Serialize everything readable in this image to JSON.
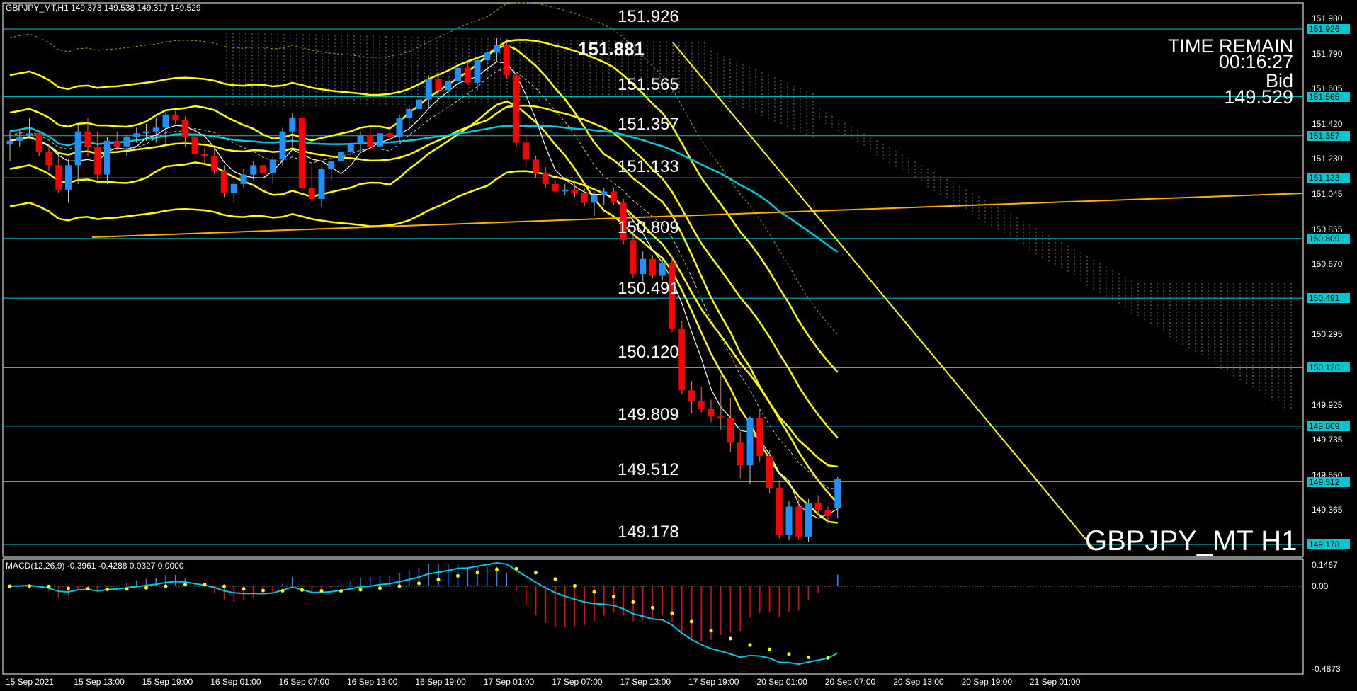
{
  "window": {
    "symbol_info": "GBPJPY_MT,H1  149.373 149.538 149.317 149.529",
    "watermark": "GBPJPY_MT H1"
  },
  "info_panel": {
    "time_remain_label": "TIME REMAIN",
    "time_remain_value": "00:16:27",
    "bid_label": "Bid",
    "bid_value": "149.529"
  },
  "level_labels": [
    {
      "text": "151.926",
      "bold": false
    },
    {
      "text": "151.881",
      "bold": true
    },
    {
      "text": "151.565",
      "bold": false
    },
    {
      "text": "151.357",
      "bold": false
    },
    {
      "text": "151.133",
      "bold": false
    },
    {
      "text": "150.809",
      "bold": false
    },
    {
      "text": "150.491",
      "bold": false
    },
    {
      "text": "150.120",
      "bold": false
    },
    {
      "text": "149.809",
      "bold": false
    },
    {
      "text": "149.512",
      "bold": false
    },
    {
      "text": "149.178",
      "bold": false
    }
  ],
  "price_axis": [
    "151.980",
    "151.790",
    "151.605",
    "151.420",
    "151.230",
    "151.045",
    "150.855",
    "150.670",
    "150.480",
    "150.295",
    "150.110",
    "149.925",
    "149.735",
    "149.550",
    "149.365"
  ],
  "price_tags": [
    "151.926",
    "151.565",
    "151.357",
    "151.133",
    "150.809",
    "150.491",
    "150.120",
    "149.809",
    "149.512",
    "149.178"
  ],
  "macd": {
    "label": "MACD(12,26,9) -0.3961 -0.4288 0.0327 0.0000",
    "axis": [
      "0.1467",
      "0.00",
      "-0.4873"
    ]
  },
  "time_axis": [
    "15 Sep 2021",
    "15 Sep 13:00",
    "15 Sep 19:00",
    "16 Sep 01:00",
    "16 Sep 07:00",
    "16 Sep 13:00",
    "16 Sep 19:00",
    "17 Sep 01:00",
    "17 Sep 07:00",
    "17 Sep 13:00",
    "17 Sep 19:00",
    "20 Sep 01:00",
    "20 Sep 07:00",
    "20 Sep 13:00",
    "20 Sep 19:00",
    "21 Sep 01:00"
  ],
  "colors": {
    "background": "#000000",
    "bull_candle": "#1e90ff",
    "bear_candle": "#ff0000",
    "levels": "#00c8d0",
    "bands": "#ffff00",
    "ma_slow": "#00c8e0",
    "macd_line": "#00c8e0",
    "macd_signal": "#ffff00"
  },
  "chart_data": {
    "type": "candlestick",
    "title": "GBPJPY_MT H1",
    "ylim": [
      149.178,
      151.98
    ],
    "ohlc": [
      [
        151.31,
        151.38,
        151.22,
        151.33
      ],
      [
        151.33,
        151.39,
        151.3,
        151.35
      ],
      [
        151.36,
        151.45,
        151.34,
        151.37
      ],
      [
        151.37,
        151.38,
        151.25,
        151.27
      ],
      [
        151.27,
        151.31,
        151.17,
        151.2
      ],
      [
        151.2,
        151.25,
        151.05,
        151.07
      ],
      [
        151.07,
        151.23,
        151.0,
        151.2
      ],
      [
        151.2,
        151.42,
        151.1,
        151.38
      ],
      [
        151.38,
        151.45,
        151.25,
        151.3
      ],
      [
        151.3,
        151.38,
        151.12,
        151.15
      ],
      [
        151.15,
        151.35,
        151.1,
        151.33
      ],
      [
        151.33,
        151.38,
        151.28,
        151.3
      ],
      [
        151.3,
        151.36,
        151.25,
        151.35
      ],
      [
        151.35,
        151.4,
        151.32,
        151.37
      ],
      [
        151.37,
        151.42,
        151.33,
        151.38
      ],
      [
        151.38,
        151.45,
        151.32,
        151.4
      ],
      [
        151.4,
        151.48,
        151.3,
        151.47
      ],
      [
        151.47,
        151.49,
        151.42,
        151.44
      ],
      [
        151.44,
        151.46,
        151.3,
        151.35
      ],
      [
        151.35,
        151.38,
        151.25,
        151.26
      ],
      [
        151.26,
        151.3,
        151.2,
        151.25
      ],
      [
        151.25,
        151.29,
        151.15,
        151.17
      ],
      [
        151.17,
        151.2,
        151.03,
        151.05
      ],
      [
        151.05,
        151.12,
        151.0,
        151.1
      ],
      [
        151.1,
        151.18,
        151.08,
        151.15
      ],
      [
        151.15,
        151.22,
        151.12,
        151.2
      ],
      [
        151.2,
        151.24,
        151.14,
        151.16
      ],
      [
        151.16,
        151.25,
        151.1,
        151.23
      ],
      [
        151.23,
        151.4,
        151.2,
        151.38
      ],
      [
        151.38,
        151.48,
        151.3,
        151.45
      ],
      [
        151.45,
        151.47,
        151.05,
        151.08
      ],
      [
        151.08,
        151.2,
        151.0,
        151.02
      ],
      [
        151.02,
        151.19,
        150.98,
        151.18
      ],
      [
        151.18,
        151.25,
        151.12,
        151.22
      ],
      [
        151.22,
        151.29,
        151.18,
        151.27
      ],
      [
        151.27,
        151.33,
        151.24,
        151.31
      ],
      [
        151.31,
        151.38,
        151.27,
        151.36
      ],
      [
        151.36,
        151.4,
        151.28,
        151.3
      ],
      [
        151.3,
        151.4,
        151.25,
        151.37
      ],
      [
        151.37,
        151.42,
        151.33,
        151.35
      ],
      [
        151.35,
        151.47,
        151.32,
        151.45
      ],
      [
        151.45,
        151.52,
        151.4,
        151.5
      ],
      [
        151.5,
        151.58,
        151.44,
        151.55
      ],
      [
        151.55,
        151.68,
        151.5,
        151.66
      ],
      [
        151.66,
        151.7,
        151.58,
        151.6
      ],
      [
        151.6,
        151.68,
        151.55,
        151.65
      ],
      [
        151.65,
        151.74,
        151.6,
        151.72
      ],
      [
        151.72,
        151.75,
        151.63,
        151.64
      ],
      [
        151.64,
        151.78,
        151.6,
        151.76
      ],
      [
        151.76,
        151.82,
        151.7,
        151.8
      ],
      [
        151.8,
        151.88,
        151.75,
        151.84
      ],
      [
        151.84,
        151.86,
        151.66,
        151.68
      ],
      [
        151.68,
        151.69,
        151.3,
        151.32
      ],
      [
        151.32,
        151.36,
        151.2,
        151.23
      ],
      [
        151.23,
        151.25,
        151.13,
        151.16
      ],
      [
        151.16,
        151.19,
        151.08,
        151.1
      ],
      [
        151.1,
        151.12,
        151.05,
        151.06
      ],
      [
        151.06,
        151.1,
        151.04,
        151.07
      ],
      [
        151.07,
        151.12,
        151.03,
        151.05
      ],
      [
        151.05,
        151.08,
        150.98,
        151.0
      ],
      [
        151.0,
        151.06,
        150.93,
        151.04
      ],
      [
        151.04,
        151.08,
        150.99,
        151.06
      ],
      [
        151.06,
        151.08,
        150.99,
        151.0
      ],
      [
        151.0,
        151.02,
        150.78,
        150.8
      ],
      [
        150.8,
        150.84,
        150.6,
        150.62
      ],
      [
        150.62,
        150.74,
        150.58,
        150.7
      ],
      [
        150.7,
        150.72,
        150.6,
        150.61
      ],
      [
        150.61,
        150.7,
        150.59,
        150.68
      ],
      [
        150.68,
        150.72,
        150.31,
        150.33
      ],
      [
        150.33,
        150.37,
        149.98,
        150.0
      ],
      [
        150.0,
        150.05,
        149.88,
        149.94
      ],
      [
        149.94,
        150.02,
        149.88,
        149.9
      ],
      [
        149.9,
        149.95,
        149.83,
        149.86
      ],
      [
        149.86,
        150.08,
        149.79,
        149.85
      ],
      [
        149.85,
        149.96,
        149.67,
        149.72
      ],
      [
        149.72,
        149.78,
        149.53,
        149.6
      ],
      [
        149.6,
        149.86,
        149.5,
        149.85
      ],
      [
        149.85,
        149.9,
        149.62,
        149.65
      ],
      [
        149.65,
        149.68,
        149.45,
        149.48
      ],
      [
        149.48,
        149.52,
        149.21,
        149.23
      ],
      [
        149.23,
        149.41,
        149.2,
        149.38
      ],
      [
        149.38,
        149.42,
        149.2,
        149.22
      ],
      [
        149.22,
        149.42,
        149.19,
        149.4
      ],
      [
        149.4,
        149.44,
        149.33,
        149.36
      ],
      [
        149.36,
        149.38,
        149.29,
        149.33
      ],
      [
        149.373,
        149.538,
        149.317,
        149.529
      ]
    ],
    "horizontal_levels": [
      151.926,
      151.565,
      151.357,
      151.133,
      150.809,
      150.491,
      150.12,
      149.809,
      149.512,
      149.178
    ],
    "macd": {
      "fast": 12,
      "slow": 26,
      "signal": 9,
      "main": -0.3961,
      "signal_value": -0.4288,
      "ylim": [
        -0.4873,
        0.1467
      ]
    }
  }
}
